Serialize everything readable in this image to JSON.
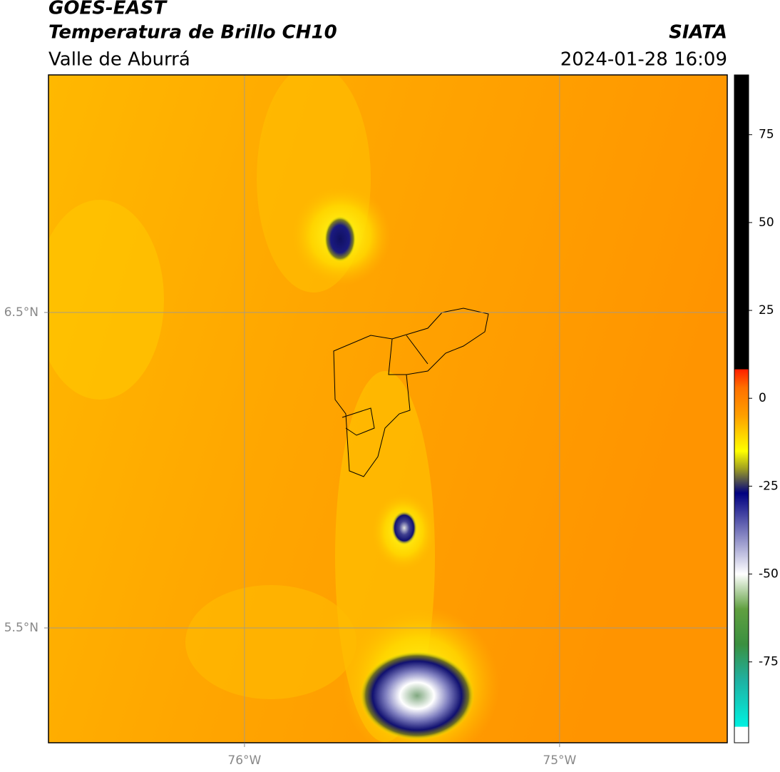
{
  "chart_data": {
    "type": "map",
    "title": "GOES-EAST",
    "subtitle": "Temperatura de Brillo CH10",
    "region": "Valle de Aburrá",
    "source": "SIATA",
    "timestamp": "2024-01-28 16:09",
    "xlim": [
      -76.622,
      -74.468
    ],
    "ylim": [
      5.136,
      7.253
    ],
    "xticks": [
      {
        "value": -76,
        "label": "76°W"
      },
      {
        "value": -75,
        "label": "75°W"
      }
    ],
    "yticks": [
      {
        "value": 6.5,
        "label": "6.5°N"
      },
      {
        "value": 5.5,
        "label": "5.5°N"
      }
    ],
    "grid": true,
    "colorbar": {
      "lim": [
        -98,
        92
      ],
      "ticks": [
        75,
        50,
        25,
        0,
        -25,
        -50,
        -75
      ],
      "stops": [
        {
          "value": -98,
          "color": "#ffffff"
        },
        {
          "value": -93.5,
          "color": "#ffffff"
        },
        {
          "value": -93.4,
          "color": "#00f0e0"
        },
        {
          "value": -80,
          "color": "#20b0a0"
        },
        {
          "value": -70,
          "color": "#3a9040"
        },
        {
          "value": -60,
          "color": "#60a040"
        },
        {
          "value": -50,
          "color": "#ffffff"
        },
        {
          "value": -40,
          "color": "#9090c8"
        },
        {
          "value": -27,
          "color": "#000080"
        },
        {
          "value": -20,
          "color": "#a0a020"
        },
        {
          "value": -15,
          "color": "#ffff00"
        },
        {
          "value": -5,
          "color": "#ffa000"
        },
        {
          "value": 3,
          "color": "#ff7000"
        },
        {
          "value": 8.2,
          "color": "#ff2000"
        },
        {
          "value": 8.3,
          "color": "#000000"
        },
        {
          "value": 92,
          "color": "#000000"
        }
      ]
    }
  }
}
